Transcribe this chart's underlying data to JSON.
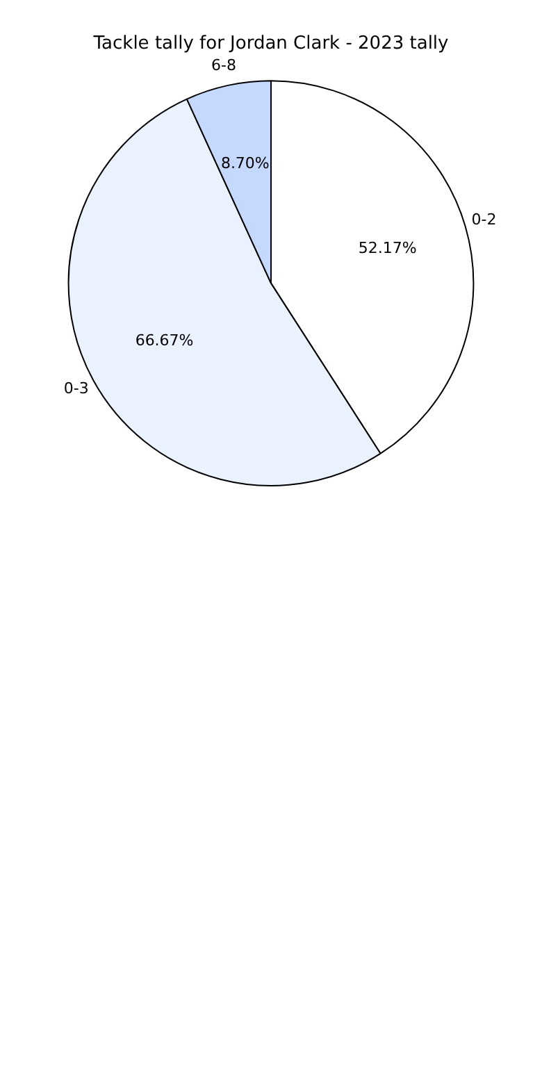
{
  "chart_data": {
    "type": "pie",
    "title": "Tackle tally for Jordan Clark - 2023 tally",
    "categories": [
      "0-2",
      "0-3",
      "6-8"
    ],
    "values": [
      52.17,
      66.67,
      8.7
    ],
    "value_labels": [
      "52.17%",
      "66.67%",
      "8.70%"
    ],
    "colors": [
      "#ffffff",
      "#eaf1ff",
      "#c5d9ff"
    ],
    "legend": false
  }
}
